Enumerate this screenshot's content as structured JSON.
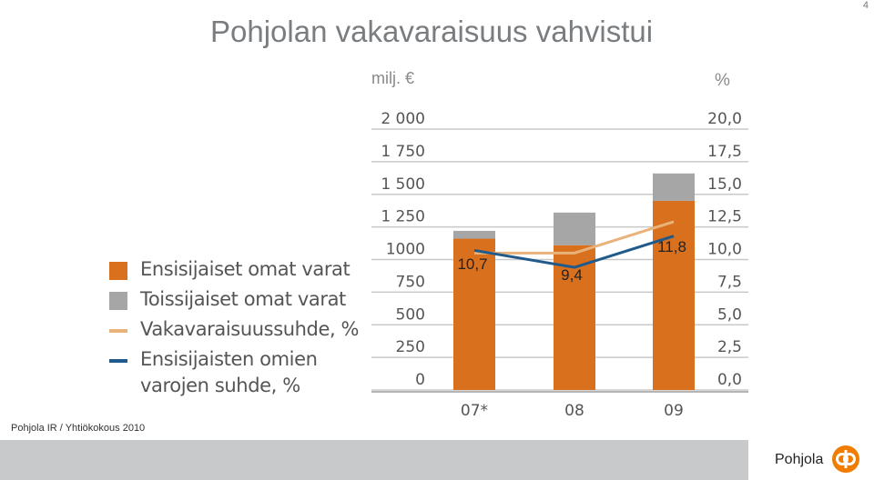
{
  "page": {
    "title": "Pohjolan vakavaraisuus vahvistui",
    "page_number": "4",
    "footer_text": "Pohjola IR / Yhtiökokous 2010",
    "brand": "Pohjola"
  },
  "colors": {
    "orange": "#d9701e",
    "gray": "#a6a6a6",
    "light_orange": "#e8b27a",
    "blue": "#1f5a8a",
    "footer_gray": "#c8c9cb",
    "logo": "#f07c00"
  },
  "chart_data": {
    "type": "bar",
    "stacked": true,
    "left_unit": "milj. €",
    "right_unit": "%",
    "categories": [
      "07*",
      "08",
      "09"
    ],
    "left_ticks": [
      "2 000",
      "1 750",
      "1 500",
      "1 250",
      "1000",
      "750",
      "500",
      "250",
      "0"
    ],
    "right_ticks": [
      "20,0",
      "17,5",
      "15,0",
      "12,5",
      "10,0",
      "7,5",
      "5,0",
      "2,5",
      "0,0"
    ],
    "left_ylim": [
      0,
      2000
    ],
    "right_ylim": [
      0,
      20
    ],
    "series": [
      {
        "name": "Ensisijaiset omat varat",
        "kind": "bar",
        "axis": "left",
        "values": [
          1160,
          1110,
          1450
        ]
      },
      {
        "name": "Toissijaiset omat varat",
        "kind": "bar",
        "axis": "left",
        "values": [
          60,
          250,
          210
        ]
      },
      {
        "name": "Vakavaraisuussuhde, %",
        "kind": "line",
        "axis": "right",
        "values": [
          10.5,
          10.5,
          12.9
        ]
      },
      {
        "name": "Ensisijaisten omien varojen suhde, %",
        "kind": "line",
        "axis": "right",
        "values": [
          10.7,
          9.4,
          11.8
        ]
      }
    ],
    "data_labels": [
      "10,7",
      "9,4",
      "11,8"
    ],
    "grid": true,
    "legend_placement": "left"
  },
  "legend": [
    {
      "label": "Ensisijaiset omat varat"
    },
    {
      "label": "Toissijaiset omat varat"
    },
    {
      "label": "Vakavaraisuussuhde, %"
    },
    {
      "label": "Ensisijaisten omien\nvarojen suhde, %"
    }
  ]
}
